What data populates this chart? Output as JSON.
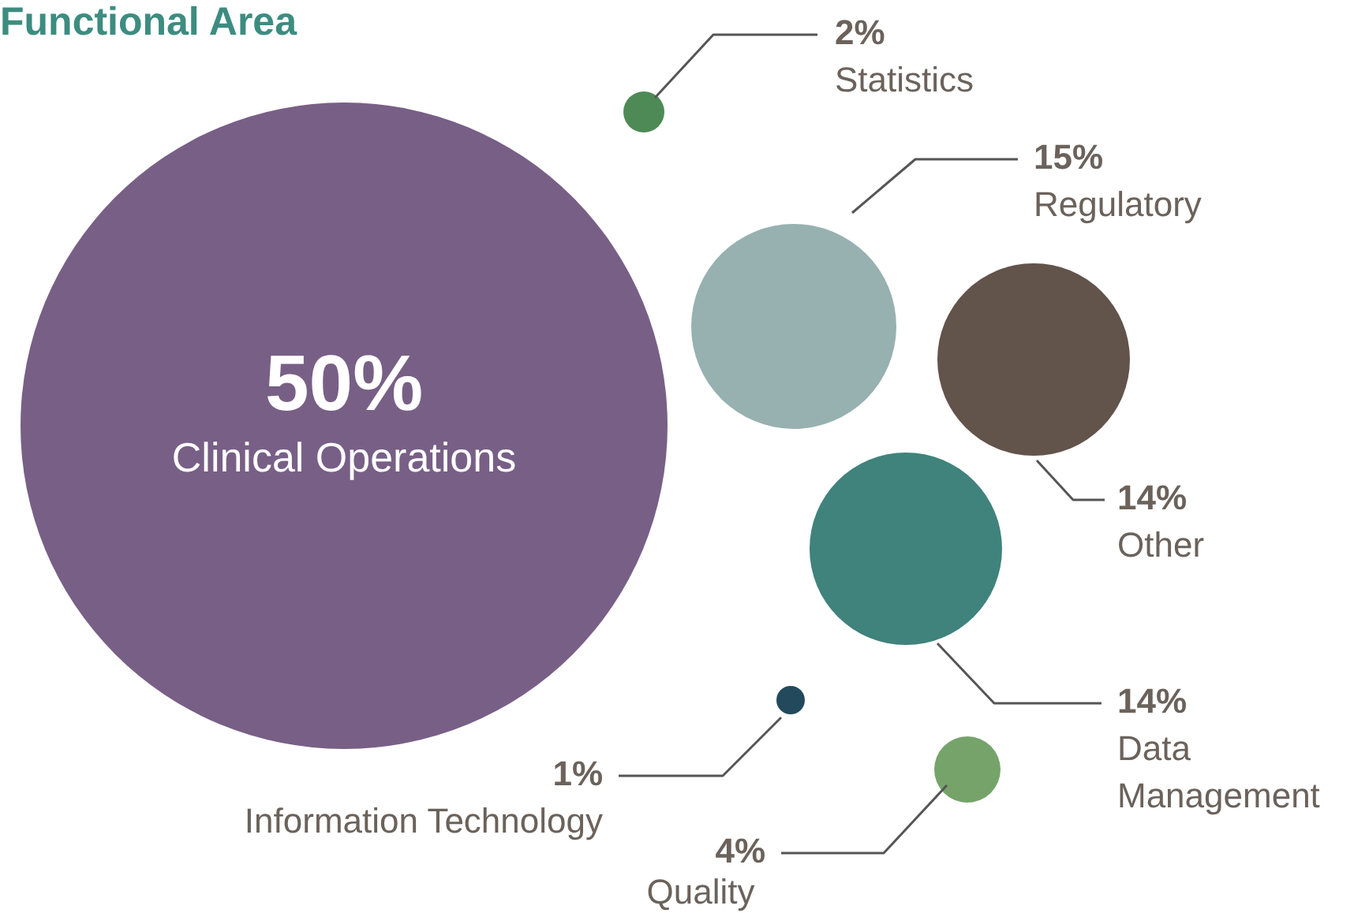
{
  "chart_data": {
    "type": "other",
    "title": "Functional Area",
    "categories": [
      "Clinical Operations",
      "Statistics",
      "Regulatory",
      "Other",
      "Data Management",
      "Information Technology",
      "Quality"
    ],
    "values": [
      50,
      2,
      15,
      14,
      14,
      1,
      4
    ],
    "value_labels": [
      "50%",
      "2%",
      "15%",
      "14%",
      "14%",
      "1%",
      "4%"
    ],
    "colors": [
      "#785f86",
      "#4e8a55",
      "#97b1b0",
      "#62534b",
      "#40827c",
      "#234a5c",
      "#75a36a"
    ],
    "legend": false
  }
}
